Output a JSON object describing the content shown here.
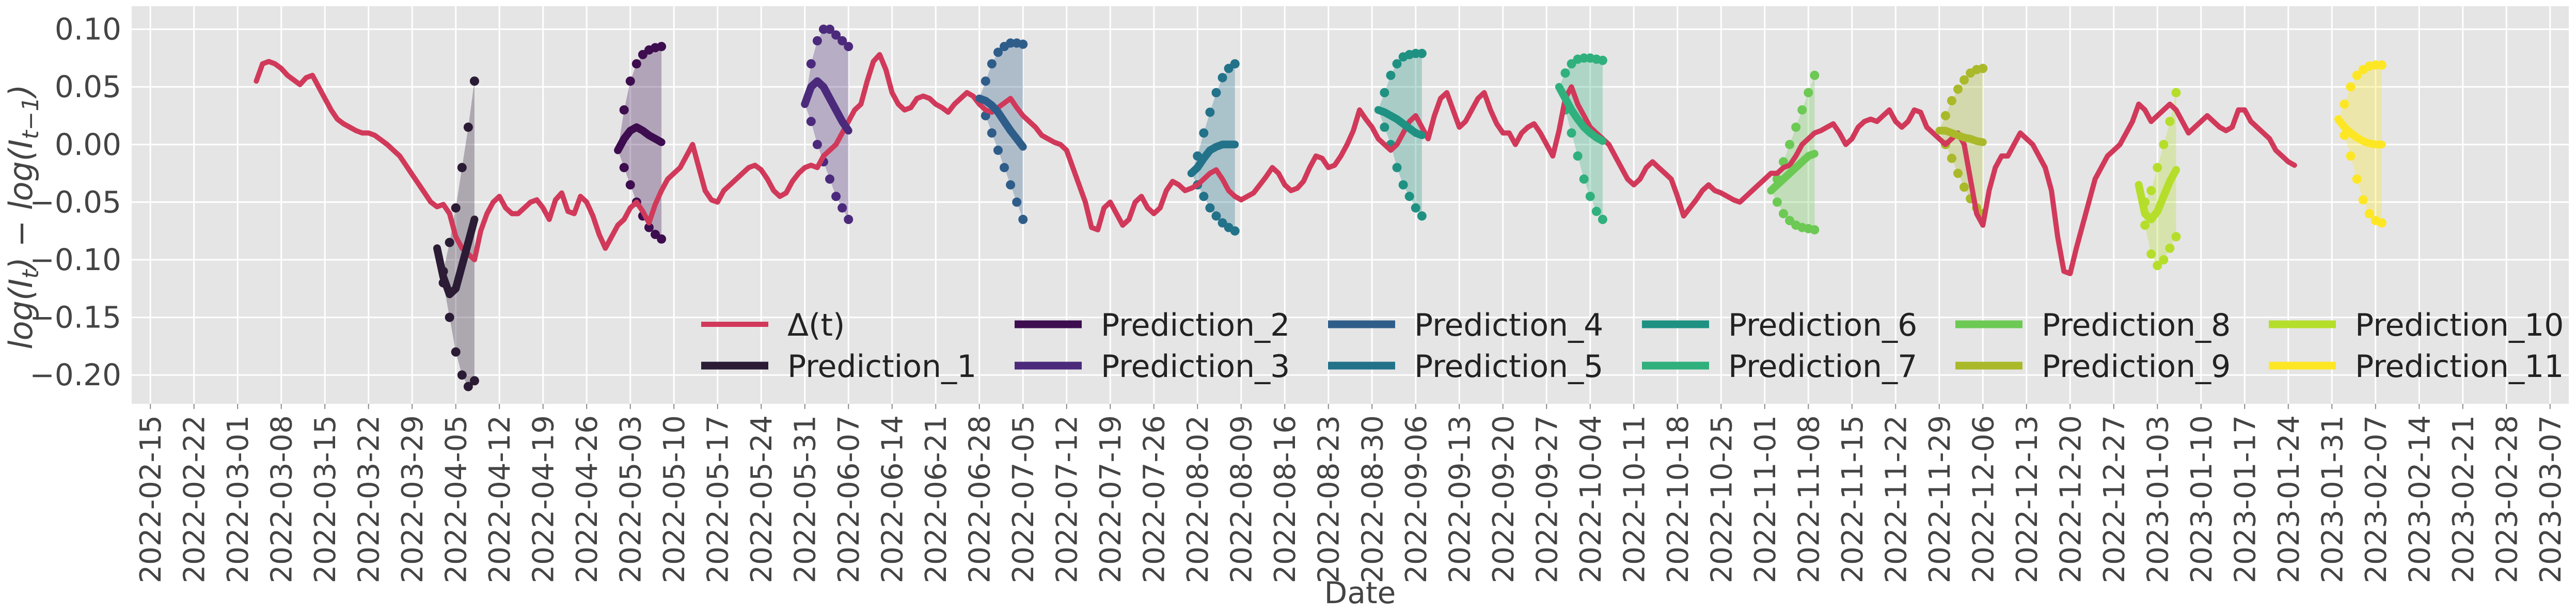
{
  "chart_data": {
    "type": "line",
    "xlabel": "Date",
    "ylabel": "log(I_t) − log(I_{t−1})",
    "ylim": [
      -0.225,
      0.12
    ],
    "yticks": [
      -0.2,
      -0.15,
      -0.1,
      -0.05,
      0.0,
      0.05,
      0.1
    ],
    "ytick_labels": [
      "−0.20",
      "−0.15",
      "−0.10",
      "−0.05",
      "0.00",
      "0.05",
      "0.10"
    ],
    "xlim": [
      "2022-02-12",
      "2023-03-10"
    ],
    "xticks": [
      "2022-02-15",
      "2022-02-22",
      "2022-03-01",
      "2022-03-08",
      "2022-03-15",
      "2022-03-22",
      "2022-03-29",
      "2022-04-05",
      "2022-04-12",
      "2022-04-19",
      "2022-04-26",
      "2022-05-03",
      "2022-05-10",
      "2022-05-17",
      "2022-05-24",
      "2022-05-31",
      "2022-06-07",
      "2022-06-14",
      "2022-06-21",
      "2022-06-28",
      "2022-07-05",
      "2022-07-12",
      "2022-07-19",
      "2022-07-26",
      "2022-08-02",
      "2022-08-09",
      "2022-08-16",
      "2022-08-23",
      "2022-08-30",
      "2022-09-06",
      "2022-09-13",
      "2022-09-20",
      "2022-09-27",
      "2022-10-04",
      "2022-10-11",
      "2022-10-18",
      "2022-10-25",
      "2022-11-01",
      "2022-11-08",
      "2022-11-15",
      "2022-11-22",
      "2022-11-29",
      "2022-12-06",
      "2022-12-13",
      "2022-12-20",
      "2022-12-27",
      "2023-01-03",
      "2023-01-10",
      "2023-01-17",
      "2023-01-24",
      "2023-01-31",
      "2023-02-07",
      "2023-02-14",
      "2023-02-21",
      "2023-02-28",
      "2023-03-07"
    ],
    "grid": true,
    "background": "#e5e5e5",
    "legend": {
      "placement": "lower-right",
      "columns": 6
    },
    "delta": {
      "name": "Δ(t)",
      "color": "#d1395a",
      "start": "2022-03-04",
      "step_days": 1,
      "values": [
        0.055,
        0.07,
        0.072,
        0.07,
        0.066,
        0.06,
        0.056,
        0.052,
        0.058,
        0.06,
        0.05,
        0.04,
        0.03,
        0.022,
        0.018,
        0.015,
        0.012,
        0.01,
        0.01,
        0.008,
        0.004,
        0.0,
        -0.005,
        -0.01,
        -0.018,
        -0.026,
        -0.034,
        -0.042,
        -0.05,
        -0.054,
        -0.052,
        -0.06,
        -0.08,
        -0.09,
        -0.095,
        -0.1,
        -0.075,
        -0.06,
        -0.05,
        -0.045,
        -0.055,
        -0.06,
        -0.06,
        -0.055,
        -0.05,
        -0.048,
        -0.055,
        -0.065,
        -0.048,
        -0.042,
        -0.058,
        -0.06,
        -0.045,
        -0.05,
        -0.062,
        -0.078,
        -0.09,
        -0.08,
        -0.07,
        -0.065,
        -0.055,
        -0.05,
        -0.058,
        -0.068,
        -0.052,
        -0.04,
        -0.03,
        -0.025,
        -0.02,
        -0.01,
        0.0,
        -0.02,
        -0.04,
        -0.048,
        -0.05,
        -0.04,
        -0.035,
        -0.03,
        -0.025,
        -0.02,
        -0.018,
        -0.022,
        -0.03,
        -0.04,
        -0.045,
        -0.042,
        -0.032,
        -0.025,
        -0.02,
        -0.018,
        -0.02,
        -0.01,
        -0.005,
        0.0,
        0.01,
        0.02,
        0.03,
        0.035,
        0.055,
        0.072,
        0.078,
        0.065,
        0.045,
        0.035,
        0.03,
        0.032,
        0.04,
        0.042,
        0.04,
        0.035,
        0.032,
        0.028,
        0.035,
        0.04,
        0.045,
        0.042,
        0.035,
        0.03,
        0.028,
        0.032,
        0.036,
        0.04,
        0.032,
        0.025,
        0.02,
        0.015,
        0.008,
        0.005,
        0.002,
        0.0,
        -0.005,
        -0.02,
        -0.035,
        -0.05,
        -0.072,
        -0.074,
        -0.055,
        -0.05,
        -0.06,
        -0.07,
        -0.065,
        -0.05,
        -0.045,
        -0.055,
        -0.06,
        -0.055,
        -0.04,
        -0.032,
        -0.035,
        -0.04,
        -0.038,
        -0.035,
        -0.03,
        -0.025,
        -0.022,
        -0.03,
        -0.04,
        -0.045,
        -0.048,
        -0.045,
        -0.042,
        -0.035,
        -0.028,
        -0.02,
        -0.025,
        -0.035,
        -0.04,
        -0.038,
        -0.032,
        -0.02,
        -0.01,
        -0.012,
        -0.02,
        -0.018,
        -0.01,
        0.0,
        0.012,
        0.03,
        0.022,
        0.015,
        0.005,
        0.0,
        -0.005,
        0.0,
        0.01,
        0.02,
        0.025,
        0.015,
        0.005,
        0.025,
        0.04,
        0.045,
        0.03,
        0.015,
        0.02,
        0.03,
        0.04,
        0.045,
        0.03,
        0.018,
        0.01,
        0.01,
        0.0,
        0.01,
        0.015,
        0.018,
        0.01,
        0.0,
        -0.01,
        0.012,
        0.04,
        0.05,
        0.035,
        0.025,
        0.015,
        0.01,
        0.005,
        0.0,
        -0.01,
        -0.02,
        -0.03,
        -0.035,
        -0.03,
        -0.02,
        -0.015,
        -0.02,
        -0.025,
        -0.03,
        -0.045,
        -0.062,
        -0.055,
        -0.048,
        -0.04,
        -0.035,
        -0.04,
        -0.042,
        -0.045,
        -0.048,
        -0.05,
        -0.045,
        -0.04,
        -0.035,
        -0.03,
        -0.025,
        -0.025,
        -0.02,
        -0.018,
        -0.01,
        0.0,
        0.005,
        0.01,
        0.012,
        0.015,
        0.018,
        0.01,
        0.0,
        0.005,
        0.015,
        0.02,
        0.022,
        0.02,
        0.025,
        0.03,
        0.02,
        0.015,
        0.02,
        0.03,
        0.028,
        0.015,
        0.01,
        0.005,
        0.0,
        0.005,
        0.01,
        0.0,
        -0.03,
        -0.06,
        -0.07,
        -0.04,
        -0.02,
        -0.01,
        -0.01,
        0.0,
        0.01,
        0.005,
        0.0,
        -0.01,
        -0.02,
        -0.04,
        -0.08,
        -0.11,
        -0.112,
        -0.09,
        -0.07,
        -0.05,
        -0.03,
        -0.02,
        -0.01,
        -0.005,
        0.0,
        0.01,
        0.02,
        0.035,
        0.03,
        0.02,
        0.025,
        0.03,
        0.035,
        0.03,
        0.02,
        0.01,
        0.015,
        0.02,
        0.025,
        0.02,
        0.015,
        0.012,
        0.015,
        0.03,
        0.03,
        0.02,
        0.015,
        0.01,
        0.005,
        -0.005,
        -0.01,
        -0.015,
        -0.018
      ]
    },
    "predictions": [
      {
        "name": "Prediction_1",
        "color": "#2b1b35",
        "start": "2022-04-02",
        "mean": [
          -0.09,
          -0.115,
          -0.13,
          -0.125,
          -0.105,
          -0.085,
          -0.065
        ],
        "lower": [
          -0.09,
          -0.12,
          -0.15,
          -0.18,
          -0.2,
          -0.21,
          -0.205
        ],
        "upper": [
          -0.09,
          -0.11,
          -0.085,
          -0.055,
          -0.02,
          0.015,
          0.055
        ]
      },
      {
        "name": "Prediction_2",
        "color": "#3d0d4f",
        "start": "2022-05-01",
        "mean": [
          -0.005,
          0.005,
          0.012,
          0.015,
          0.012,
          0.008,
          0.005,
          0.002
        ],
        "lower": [
          -0.005,
          -0.02,
          -0.035,
          -0.05,
          -0.062,
          -0.072,
          -0.078,
          -0.082
        ],
        "upper": [
          -0.005,
          0.03,
          0.055,
          0.07,
          0.078,
          0.082,
          0.084,
          0.085
        ]
      },
      {
        "name": "Prediction_3",
        "color": "#4b2a7c",
        "start": "2022-05-31",
        "mean": [
          0.035,
          0.05,
          0.055,
          0.05,
          0.04,
          0.03,
          0.02,
          0.012
        ],
        "lower": [
          0.035,
          0.02,
          0.0,
          -0.015,
          -0.03,
          -0.045,
          -0.055,
          -0.065
        ],
        "upper": [
          0.035,
          0.07,
          0.09,
          0.1,
          0.1,
          0.095,
          0.09,
          0.085
        ]
      },
      {
        "name": "Prediction_4",
        "color": "#2f5d8a",
        "start": "2022-06-28",
        "mean": [
          0.04,
          0.038,
          0.034,
          0.028,
          0.02,
          0.012,
          0.005,
          -0.002
        ],
        "lower": [
          0.04,
          0.025,
          0.01,
          -0.005,
          -0.02,
          -0.035,
          -0.05,
          -0.065
        ],
        "upper": [
          0.04,
          0.055,
          0.07,
          0.08,
          0.085,
          0.088,
          0.088,
          0.087
        ]
      },
      {
        "name": "Prediction_5",
        "color": "#22728a",
        "start": "2022-08-01",
        "mean": [
          -0.025,
          -0.02,
          -0.012,
          -0.005,
          -0.002,
          0.0,
          0.0,
          0.0
        ],
        "lower": [
          -0.025,
          -0.035,
          -0.045,
          -0.055,
          -0.062,
          -0.068,
          -0.072,
          -0.075
        ],
        "upper": [
          -0.025,
          -0.01,
          0.01,
          0.028,
          0.045,
          0.058,
          0.066,
          0.07
        ]
      },
      {
        "name": "Prediction_6",
        "color": "#1f9182",
        "start": "2022-08-31",
        "mean": [
          0.03,
          0.028,
          0.025,
          0.022,
          0.018,
          0.014,
          0.01,
          0.008
        ],
        "lower": [
          0.03,
          0.015,
          0.0,
          -0.02,
          -0.035,
          -0.045,
          -0.055,
          -0.062
        ],
        "upper": [
          0.03,
          0.045,
          0.06,
          0.07,
          0.076,
          0.078,
          0.079,
          0.079
        ]
      },
      {
        "name": "Prediction_7",
        "color": "#2fb07d",
        "start": "2022-09-29",
        "mean": [
          0.05,
          0.04,
          0.03,
          0.022,
          0.015,
          0.01,
          0.006,
          0.003
        ],
        "lower": [
          0.05,
          0.03,
          0.01,
          -0.01,
          -0.03,
          -0.045,
          -0.058,
          -0.065
        ],
        "upper": [
          0.05,
          0.062,
          0.07,
          0.074,
          0.075,
          0.075,
          0.074,
          0.073
        ]
      },
      {
        "name": "Prediction_8",
        "color": "#6cc954",
        "start": "2022-11-02",
        "mean": [
          -0.04,
          -0.035,
          -0.03,
          -0.025,
          -0.02,
          -0.015,
          -0.01,
          -0.008
        ],
        "lower": [
          -0.04,
          -0.05,
          -0.06,
          -0.066,
          -0.07,
          -0.072,
          -0.073,
          -0.074
        ],
        "upper": [
          -0.04,
          -0.03,
          -0.015,
          0.0,
          0.015,
          0.03,
          0.045,
          0.06
        ]
      },
      {
        "name": "Prediction_9",
        "color": "#aab92a",
        "start": "2022-11-29",
        "mean": [
          0.012,
          0.012,
          0.01,
          0.008,
          0.006,
          0.005,
          0.003,
          0.002
        ],
        "lower": [
          0.012,
          0.0,
          -0.012,
          -0.025,
          -0.037,
          -0.047,
          -0.055,
          -0.06
        ],
        "upper": [
          0.012,
          0.025,
          0.038,
          0.048,
          0.056,
          0.062,
          0.065,
          0.066
        ]
      },
      {
        "name": "Prediction_10",
        "color": "#b5de2b",
        "start": "2022-12-31",
        "mean": [
          -0.035,
          -0.06,
          -0.065,
          -0.058,
          -0.045,
          -0.032,
          -0.022
        ],
        "lower": [
          -0.035,
          -0.07,
          -0.095,
          -0.105,
          -0.1,
          -0.09,
          -0.08
        ],
        "upper": [
          -0.035,
          -0.05,
          -0.04,
          -0.02,
          0.0,
          0.02,
          0.045
        ]
      },
      {
        "name": "Prediction_11",
        "color": "#fde725",
        "start": "2023-02-01",
        "mean": [
          0.022,
          0.015,
          0.01,
          0.006,
          0.003,
          0.001,
          0.0,
          0.0
        ],
        "lower": [
          0.022,
          0.008,
          -0.01,
          -0.03,
          -0.048,
          -0.06,
          -0.066,
          -0.068
        ],
        "upper": [
          0.022,
          0.035,
          0.05,
          0.06,
          0.065,
          0.068,
          0.069,
          0.069
        ]
      }
    ]
  }
}
